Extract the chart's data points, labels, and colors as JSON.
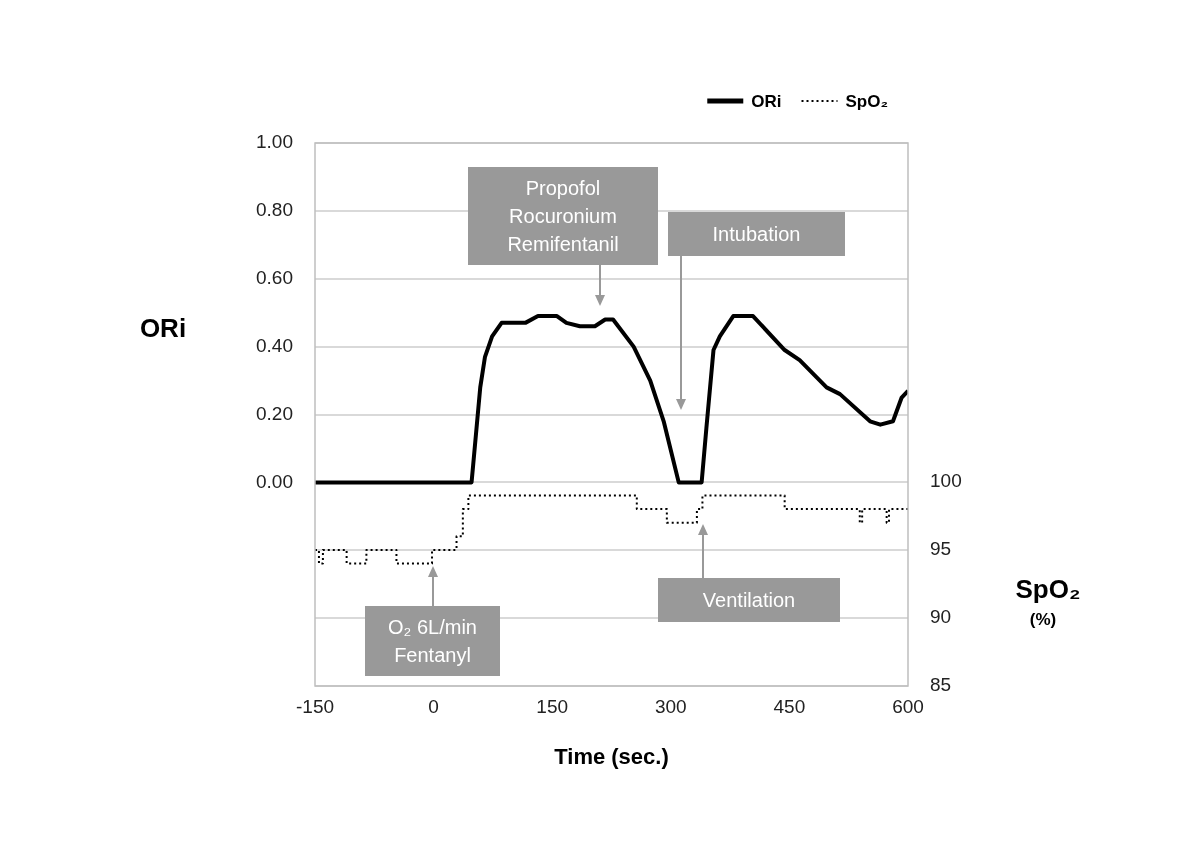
{
  "chart_data": {
    "type": "line",
    "xlabel": "Time (sec.)",
    "ylabel": "ORi",
    "y2label": "SpO₂ (%)",
    "xlim": [
      -150,
      600
    ],
    "xticks": [
      -150,
      0,
      150,
      300,
      450,
      600
    ],
    "ylim": [
      -0.6,
      1.0
    ],
    "yticks": [
      {
        "value": 0,
        "label": "0.00"
      },
      {
        "value": 0.2,
        "label": "0.20"
      },
      {
        "value": 0.4,
        "label": "0.40"
      },
      {
        "value": 0.6,
        "label": "0.60"
      },
      {
        "value": 0.8,
        "label": "0.80"
      },
      {
        "value": 1.0,
        "label": "1.00"
      }
    ],
    "y2lim": [
      85,
      124.9
    ],
    "y2ticks": [
      85,
      90,
      95,
      100
    ],
    "grid": "y",
    "legend": "top right",
    "series": [
      {
        "name": "ORi",
        "color": "#000000",
        "line_style": "solid",
        "x": [
          -150,
          48,
          50,
          59,
          65,
          74,
          86,
          116,
          132,
          156,
          168,
          185,
          204,
          217,
          227,
          253,
          274,
          291,
          310,
          339,
          345,
          354,
          362,
          379,
          404,
          444,
          463,
          497,
          514,
          552,
          565,
          581,
          592,
          600
        ],
        "values": [
          0,
          0,
          0.05,
          0.28,
          0.37,
          0.43,
          0.47,
          0.47,
          0.49,
          0.49,
          0.47,
          0.46,
          0.46,
          0.48,
          0.48,
          0.4,
          0.3,
          0.18,
          0,
          0,
          0.16,
          0.39,
          0.43,
          0.49,
          0.49,
          0.39,
          0.36,
          0.28,
          0.26,
          0.18,
          0.17,
          0.18,
          0.25,
          0.27
        ]
      },
      {
        "name": "SpO₂",
        "type": "step",
        "axis": "y2",
        "color": "#000000",
        "line_style": "dotted",
        "x": [
          -150,
          -145,
          -140,
          -131,
          -110,
          -85,
          -47,
          -2,
          29,
          37,
          44,
          257,
          295,
          333,
          340,
          444,
          539,
          542,
          573,
          576,
          600
        ],
        "values": [
          95,
          94,
          95,
          95,
          94,
          95,
          94,
          95,
          96,
          98,
          99,
          98,
          97,
          98,
          99,
          98,
          97,
          98,
          97,
          98,
          98
        ]
      }
    ],
    "annotations": [
      "Propofol\nRocuronium\nRemifentanil",
      "Intubation",
      "Ventilation",
      "O₂ 6L/min\nFentanyl"
    ]
  }
}
